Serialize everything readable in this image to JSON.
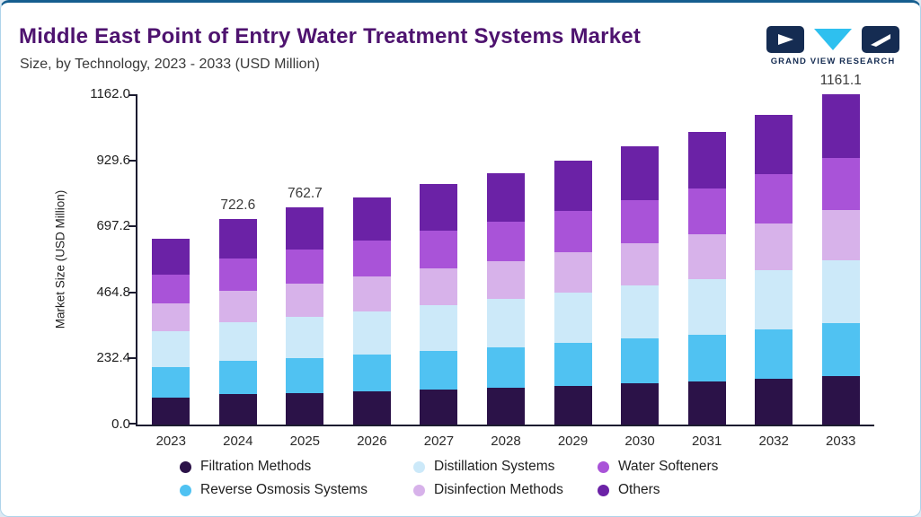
{
  "page": {
    "background": "#dde9f3",
    "card_border": "#aed4ea",
    "top_bar_color": "#155e8f"
  },
  "header": {
    "title": "Middle East Point of Entry Water Treatment Systems Market",
    "subtitle": "Size, by Technology, 2023 - 2033 (USD Million)",
    "title_color": "#4e136f",
    "logo_text": "GRAND VIEW RESEARCH"
  },
  "chart_data": {
    "type": "bar",
    "stacked": true,
    "title": "Middle East Point of Entry Water Treatment Systems Market Size, by Technology, 2023 - 2033 (USD Million)",
    "xlabel": "",
    "ylabel": "Market Size (USD Million)",
    "ylim": [
      0,
      1162.0
    ],
    "grid": false,
    "legend_position": "bottom",
    "yticks": [
      {
        "value": 0,
        "label": "0.0"
      },
      {
        "value": 232.4,
        "label": "232.4"
      },
      {
        "value": 464.8,
        "label": "464.8"
      },
      {
        "value": 697.2,
        "label": "697.2"
      },
      {
        "value": 929.6,
        "label": "929.6"
      },
      {
        "value": 1162.0,
        "label": "1162.0"
      }
    ],
    "categories": [
      "2023",
      "2024",
      "2025",
      "2026",
      "2027",
      "2028",
      "2029",
      "2030",
      "2031",
      "2032",
      "2033"
    ],
    "series": [
      {
        "name": "Filtration Methods",
        "color": "#2b1248",
        "values": [
          96,
          106,
          112,
          118,
          124,
          130,
          137,
          144,
          151,
          160,
          170
        ]
      },
      {
        "name": "Reverse Osmosis Systems",
        "color": "#50c2f2",
        "values": [
          106,
          117,
          123,
          129,
          136,
          143,
          150,
          158,
          166,
          176,
          187
        ]
      },
      {
        "name": "Distillation Systems",
        "color": "#cce9f9",
        "values": [
          125,
          137,
          145,
          152,
          161,
          168,
          177,
          186,
          196,
          207,
          221
        ]
      },
      {
        "name": "Disinfection Methods",
        "color": "#d7b2ea",
        "values": [
          99,
          110,
          116,
          122,
          129,
          135,
          142,
          149,
          157,
          166,
          177
        ]
      },
      {
        "name": "Water Softeners",
        "color": "#a953d8",
        "values": [
          103,
          114,
          120,
          126,
          133,
          139,
          146,
          154,
          162,
          171,
          182
        ]
      },
      {
        "name": "Others",
        "color": "#6b22a6",
        "values": [
          126,
          138.6,
          146.7,
          153,
          162,
          170,
          178,
          189,
          198,
          210,
          224.1
        ]
      }
    ],
    "value_labels": {
      "2024": "722.6",
      "2025": "762.7",
      "2033": "1161.1"
    },
    "legend_rows": [
      [
        "Filtration Methods",
        "Distillation Systems",
        "Water Softeners"
      ],
      [
        "Reverse Osmosis Systems",
        "Disinfection Methods",
        "Others"
      ]
    ]
  }
}
